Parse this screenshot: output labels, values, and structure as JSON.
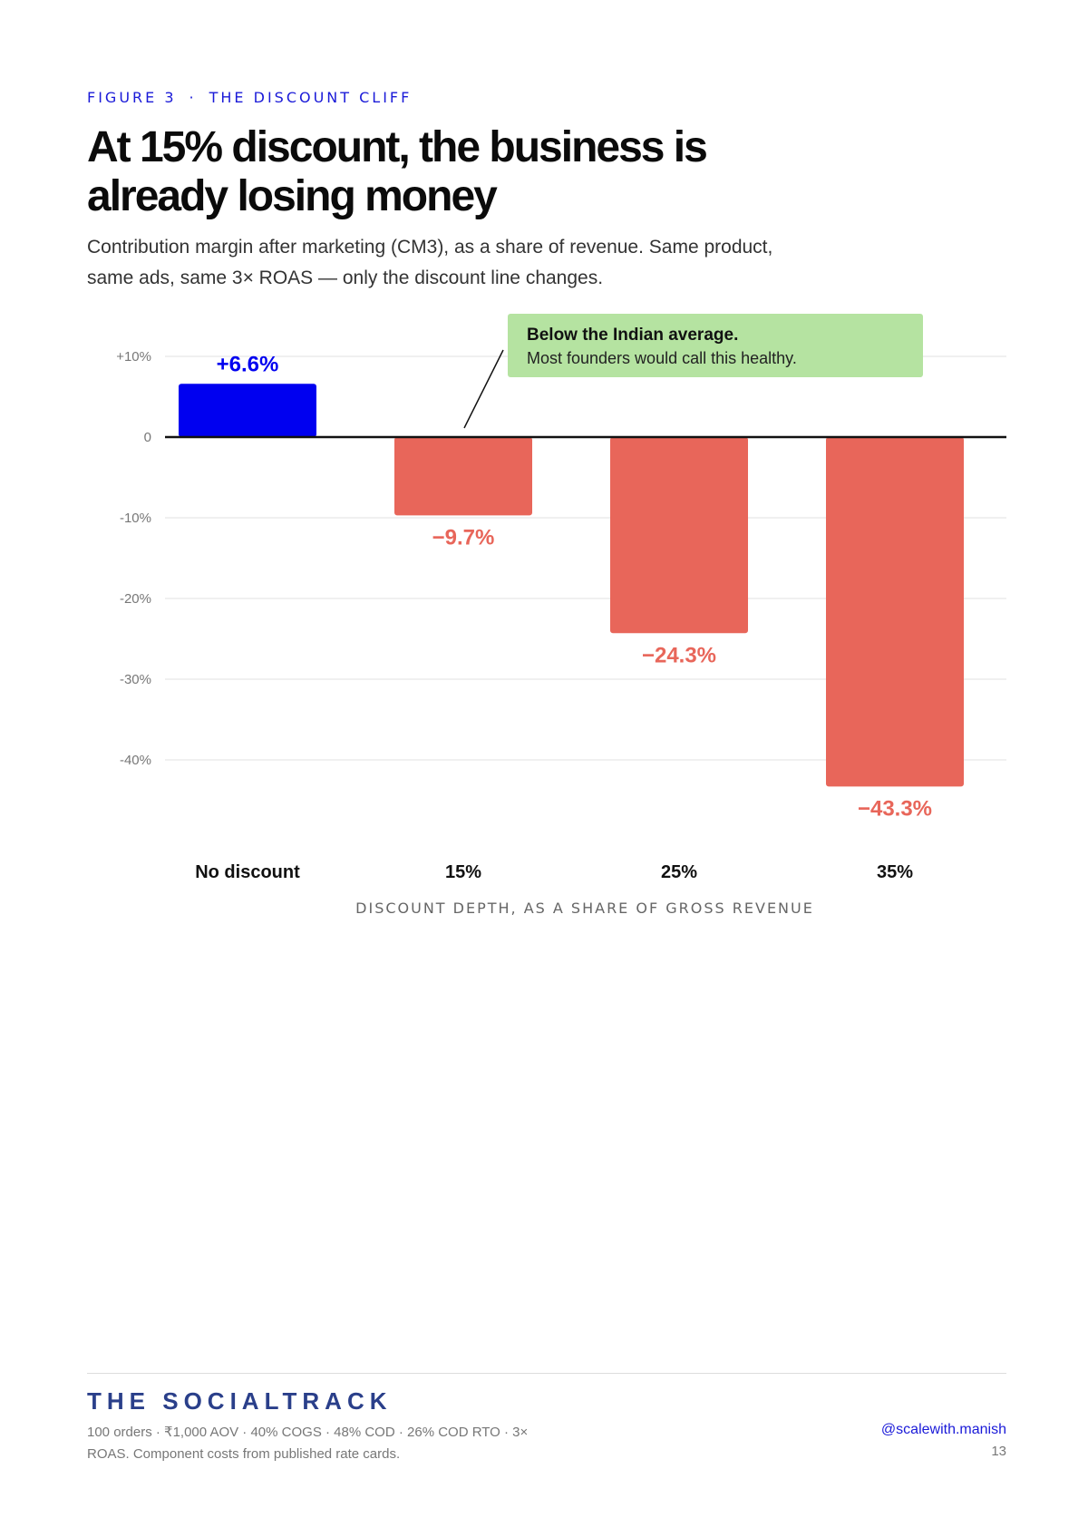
{
  "eyebrow": {
    "figure": "FIGURE 3",
    "separator": "·",
    "label": "THE DISCOUNT CLIFF"
  },
  "title": "At 15% discount, the business is already losing money",
  "subtitle": "Contribution margin after marketing (CM3), as a share of revenue. Same product, same ads, same 3× ROAS — only the discount line changes.",
  "chart_data": {
    "type": "bar",
    "categories": [
      "No discount",
      "15%",
      "25%",
      "35%"
    ],
    "values": [
      6.6,
      -9.7,
      -24.3,
      -43.3
    ],
    "value_labels": [
      "+6.6%",
      "−9.7%",
      "−24.3%",
      "−43.3%"
    ],
    "title": "",
    "xlabel": "DISCOUNT DEPTH, AS A SHARE OF GROSS REVENUE",
    "ylabel": "",
    "ylim": [
      -48,
      12
    ],
    "y_ticks": [
      10,
      0,
      -10,
      -20,
      -30,
      -40
    ],
    "y_tick_labels": [
      "+10%",
      "0",
      "-10%",
      "-20%",
      "-30%",
      "-40%"
    ],
    "grid": true,
    "colors": {
      "positive": "#0000f0",
      "negative": "#e8665a"
    },
    "annotation": {
      "category": "15%",
      "title": "Below the Indian average.",
      "text": "Most founders would call this healthy.",
      "background": "#b5e3a1"
    }
  },
  "footer": {
    "brand": "THE SOCIALTRACK",
    "note": "100 orders · ₹1,000 AOV · 40% COGS · 48% COD · 26% COD RTO · 3× ROAS. Component costs from published rate cards.",
    "handle": "@scalewith.manish",
    "page": "13"
  }
}
